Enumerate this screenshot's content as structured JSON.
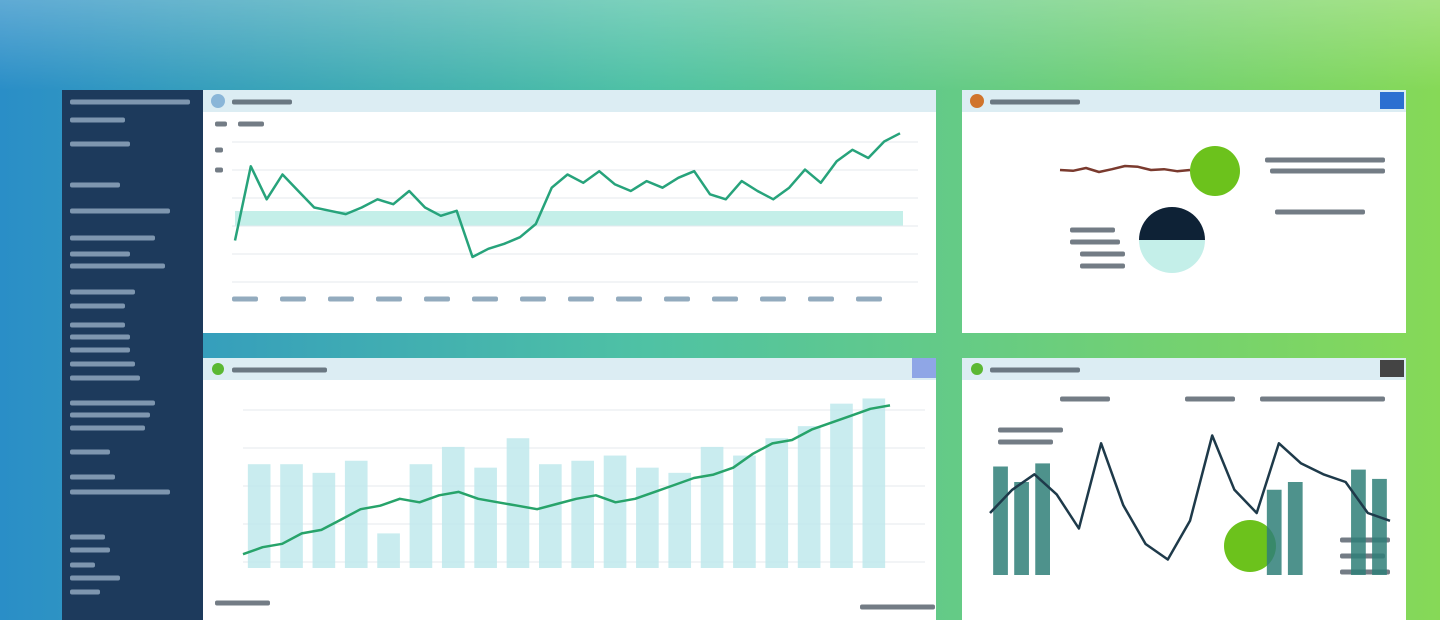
{
  "panels": [
    {
      "chart_data": {
        "type": "line",
        "ylim": [
          0,
          100
        ],
        "series": [
          {
            "type": "line",
            "color": "#27a37b",
            "values": [
              30,
              75,
              55,
              70,
              60,
              50,
              48,
              46,
              50,
              55,
              52,
              60,
              50,
              45,
              48,
              20,
              25,
              28,
              32,
              40,
              62,
              70,
              65,
              72,
              64,
              60,
              66,
              62,
              68,
              72,
              58,
              55,
              66,
              60,
              55,
              62,
              73,
              65,
              78,
              85,
              80,
              90,
              95
            ]
          }
        ]
      }
    },
    {
      "chart_data": {
        "type": "pie",
        "values": [
          50,
          50
        ],
        "colors": [
          "#0e2236",
          "#c4efe9"
        ],
        "ylim": [
          0,
          100
        ],
        "series": [
          {
            "type": "line",
            "color": "#7a3a2e",
            "values": [
              50,
              48,
              55,
              45,
              52,
              60,
              58,
              50,
              52,
              47,
              50
            ]
          }
        ]
      }
    },
    {
      "chart_data": {
        "type": "bar",
        "ylim": [
          0,
          100
        ],
        "series": [
          {
            "type": "bar",
            "color": "#bfe9ec",
            "values": [
              60,
              60,
              55,
              62,
              20,
              60,
              70,
              58,
              75,
              60,
              62,
              65,
              58,
              55,
              70,
              65,
              75,
              82,
              95,
              98
            ]
          },
          {
            "type": "line",
            "color": "#27a36a",
            "values": [
              8,
              12,
              14,
              20,
              22,
              28,
              34,
              36,
              40,
              38,
              42,
              44,
              40,
              38,
              36,
              34,
              37,
              40,
              42,
              38,
              40,
              44,
              48,
              52,
              54,
              58,
              66,
              72,
              74,
              80,
              84,
              88,
              92,
              94
            ]
          }
        ]
      }
    },
    {
      "chart_data": {
        "type": "bar",
        "ylim": [
          0,
          100
        ],
        "series": [
          {
            "type": "bar",
            "color": "#2f7f78",
            "values": [
              70,
              60,
              72,
              0,
              0,
              0,
              0,
              0,
              0,
              0,
              0,
              0,
              0,
              55,
              60,
              0,
              0,
              68,
              62
            ]
          },
          {
            "type": "line",
            "color": "#1e3a4a",
            "values": [
              40,
              55,
              65,
              52,
              30,
              85,
              45,
              20,
              10,
              35,
              90,
              55,
              40,
              85,
              72,
              65,
              60,
              40,
              35
            ]
          }
        ]
      }
    }
  ]
}
